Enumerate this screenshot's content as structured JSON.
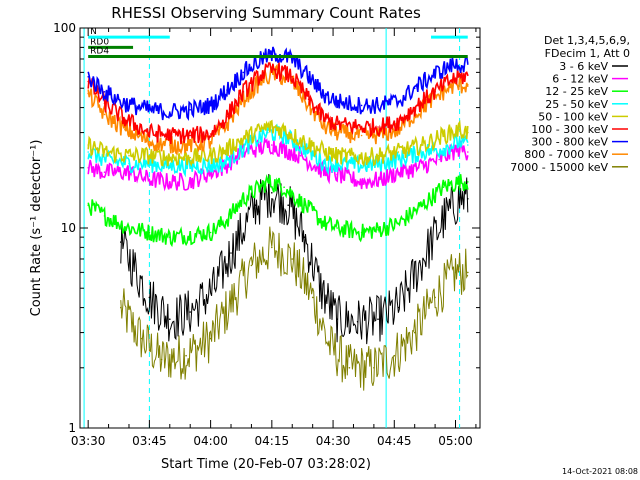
{
  "chart_data": {
    "type": "line",
    "title": "RHESSI Observing Summary Count Rates",
    "xlabel": "Start Time (20-Feb-07 03:28:02)",
    "ylabel": "Count Rate (s⁻¹ detector⁻¹)",
    "yscale": "log",
    "ylim": [
      1,
      100
    ],
    "xlim": [
      -2,
      96
    ],
    "x_units": "minutes after 03:30",
    "y_tick_labels": [
      "1",
      "10",
      "100"
    ],
    "x_ticks": [
      {
        "label": "03:30",
        "value": 0
      },
      {
        "label": "03:45",
        "value": 15
      },
      {
        "label": "04:00",
        "value": 30
      },
      {
        "label": "04:15",
        "value": 45
      },
      {
        "label": "04:30",
        "value": 60
      },
      {
        "label": "04:45",
        "value": 75
      },
      {
        "label": "05:00",
        "value": 90
      }
    ],
    "legend_header": [
      "Det 1,3,4,5,6,9,",
      "FDecim 1, Att 0"
    ],
    "legend_placement": "right",
    "series": [
      {
        "name": "3 - 6 keV",
        "color": "#000000",
        "points": [
          [
            8,
            8.5
          ],
          [
            15,
            4.5
          ],
          [
            20,
            3.5
          ],
          [
            25,
            3.8
          ],
          [
            31,
            5
          ],
          [
            35,
            7.5
          ],
          [
            41,
            13
          ],
          [
            45,
            15
          ],
          [
            49,
            13
          ],
          [
            53,
            9
          ],
          [
            57,
            5
          ],
          [
            61,
            3.5
          ],
          [
            66,
            3.4
          ],
          [
            71,
            3.5
          ],
          [
            76,
            4
          ],
          [
            82,
            7
          ],
          [
            87,
            11
          ],
          [
            91,
            14
          ],
          [
            93,
            14
          ]
        ]
      },
      {
        "name": "6 - 12 keV",
        "color": "#ff00ff",
        "points": [
          [
            0,
            20
          ],
          [
            4,
            19
          ],
          [
            10,
            19
          ],
          [
            15,
            17.5
          ],
          [
            20,
            17
          ],
          [
            25,
            17
          ],
          [
            30,
            19
          ],
          [
            33,
            20
          ],
          [
            38,
            24
          ],
          [
            45,
            26
          ],
          [
            52,
            23
          ],
          [
            58,
            19
          ],
          [
            61,
            18.5
          ],
          [
            67,
            17
          ],
          [
            72,
            17.5
          ],
          [
            76,
            19
          ],
          [
            81,
            20
          ],
          [
            86,
            22
          ],
          [
            91,
            25
          ],
          [
            93,
            24
          ]
        ]
      },
      {
        "name": "12 - 25 keV",
        "color": "#00ff00",
        "points": [
          [
            0,
            13
          ],
          [
            4,
            11.5
          ],
          [
            10,
            10
          ],
          [
            15,
            9.5
          ],
          [
            20,
            9
          ],
          [
            25,
            9.2
          ],
          [
            30,
            9.5
          ],
          [
            34,
            11
          ],
          [
            38,
            14
          ],
          [
            44,
            17
          ],
          [
            48,
            16
          ],
          [
            53,
            13
          ],
          [
            58,
            10.5
          ],
          [
            61,
            10
          ],
          [
            67,
            9.5
          ],
          [
            71,
            9.8
          ],
          [
            76,
            10.5
          ],
          [
            82,
            13
          ],
          [
            87,
            16
          ],
          [
            91,
            17
          ],
          [
            93,
            17
          ]
        ]
      },
      {
        "name": "25 - 50 keV",
        "color": "#00ffff",
        "points": [
          [
            0,
            24
          ],
          [
            4,
            22
          ],
          [
            10,
            21
          ],
          [
            15,
            21
          ],
          [
            20,
            20.5
          ],
          [
            25,
            20.5
          ],
          [
            30,
            20.5
          ],
          [
            33,
            21
          ],
          [
            38,
            25
          ],
          [
            44,
            30
          ],
          [
            48,
            29
          ],
          [
            53,
            25
          ],
          [
            58,
            21
          ],
          [
            61,
            21
          ],
          [
            67,
            20.5
          ],
          [
            71,
            21
          ],
          [
            76,
            22
          ],
          [
            82,
            24
          ],
          [
            87,
            25
          ],
          [
            91,
            27
          ],
          [
            93,
            26
          ]
        ]
      },
      {
        "name": "50 - 100 keV",
        "color": "#cccc00",
        "points": [
          [
            0,
            26
          ],
          [
            4,
            24
          ],
          [
            10,
            23
          ],
          [
            15,
            23
          ],
          [
            20,
            22.5
          ],
          [
            25,
            22.5
          ],
          [
            30,
            23
          ],
          [
            33,
            24
          ],
          [
            38,
            28
          ],
          [
            44,
            32
          ],
          [
            48,
            31
          ],
          [
            53,
            27
          ],
          [
            58,
            24
          ],
          [
            61,
            23
          ],
          [
            67,
            22.5
          ],
          [
            71,
            23
          ],
          [
            76,
            24
          ],
          [
            82,
            26
          ],
          [
            87,
            29
          ],
          [
            91,
            31
          ],
          [
            93,
            30
          ]
        ]
      },
      {
        "name": "100 - 300 keV",
        "color": "#ff0000",
        "points": [
          [
            0,
            54
          ],
          [
            4,
            42
          ],
          [
            9,
            35
          ],
          [
            15,
            30
          ],
          [
            20,
            29
          ],
          [
            25,
            29
          ],
          [
            30,
            29.5
          ],
          [
            34,
            36
          ],
          [
            38,
            48
          ],
          [
            43,
            60
          ],
          [
            46,
            62
          ],
          [
            50,
            57
          ],
          [
            54,
            44
          ],
          [
            58,
            35
          ],
          [
            61,
            33
          ],
          [
            67,
            32
          ],
          [
            71,
            32
          ],
          [
            76,
            34
          ],
          [
            80,
            40
          ],
          [
            85,
            48
          ],
          [
            89,
            55
          ],
          [
            93,
            58
          ]
        ]
      },
      {
        "name": "300 - 800 keV",
        "color": "#0000ff",
        "points": [
          [
            0,
            57
          ],
          [
            4,
            48
          ],
          [
            9,
            42
          ],
          [
            15,
            39
          ],
          [
            20,
            38
          ],
          [
            25,
            39
          ],
          [
            30,
            41
          ],
          [
            34,
            49
          ],
          [
            38,
            60
          ],
          [
            43,
            71
          ],
          [
            46,
            74
          ],
          [
            50,
            70
          ],
          [
            54,
            57
          ],
          [
            58,
            46
          ],
          [
            61,
            43
          ],
          [
            67,
            41
          ],
          [
            71,
            41
          ],
          [
            76,
            43
          ],
          [
            80,
            50
          ],
          [
            85,
            59
          ],
          [
            89,
            65
          ],
          [
            93,
            66
          ]
        ]
      },
      {
        "name": "800 - 7000 keV",
        "color": "#ff8800",
        "points": [
          [
            0,
            47
          ],
          [
            4,
            37
          ],
          [
            9,
            31
          ],
          [
            15,
            27
          ],
          [
            20,
            26
          ],
          [
            25,
            26
          ],
          [
            30,
            27
          ],
          [
            34,
            33
          ],
          [
            38,
            44
          ],
          [
            43,
            56
          ],
          [
            46,
            59
          ],
          [
            50,
            54
          ],
          [
            54,
            41
          ],
          [
            58,
            32
          ],
          [
            61,
            30
          ],
          [
            67,
            29
          ],
          [
            71,
            29
          ],
          [
            76,
            31
          ],
          [
            80,
            37
          ],
          [
            85,
            45
          ],
          [
            89,
            51
          ],
          [
            93,
            52
          ]
        ]
      },
      {
        "name": "7000 - 15000 keV",
        "color": "#808000",
        "points": [
          [
            8,
            4
          ],
          [
            13,
            2.8
          ],
          [
            18,
            2.2
          ],
          [
            24,
            2.3
          ],
          [
            30,
            2.8
          ],
          [
            35,
            4.2
          ],
          [
            40,
            6.5
          ],
          [
            45,
            8
          ],
          [
            50,
            7
          ],
          [
            55,
            4.5
          ],
          [
            59,
            2.6
          ],
          [
            64,
            2
          ],
          [
            70,
            2
          ],
          [
            75,
            2.3
          ],
          [
            80,
            3
          ],
          [
            85,
            4.5
          ],
          [
            90,
            6
          ],
          [
            93,
            6
          ]
        ]
      }
    ],
    "annotations": [
      {
        "text": "RD0",
        "color": "#008000",
        "x_range": [
          0,
          11
        ],
        "y": 80
      },
      {
        "text": "RD4",
        "color": "#008000",
        "x_range": [
          0,
          93
        ],
        "y": 72
      },
      {
        "text": "N",
        "color": "#00ffff",
        "x_range": [
          0,
          20
        ],
        "y": 90
      },
      {
        "text": "",
        "color": "#00ffff",
        "x_range": [
          84,
          93
        ],
        "y": 90
      }
    ],
    "vertical_lines": [
      {
        "x": -1,
        "color": "#00ffff",
        "style": "solid"
      },
      {
        "x": 15,
        "color": "#00ffff",
        "style": "dashed"
      },
      {
        "x": 73,
        "color": "#00ffff",
        "style": "solid"
      },
      {
        "x": 91,
        "color": "#00ffff",
        "style": "dashed"
      }
    ],
    "footer_timestamp": "14-Oct-2021 08:08"
  }
}
